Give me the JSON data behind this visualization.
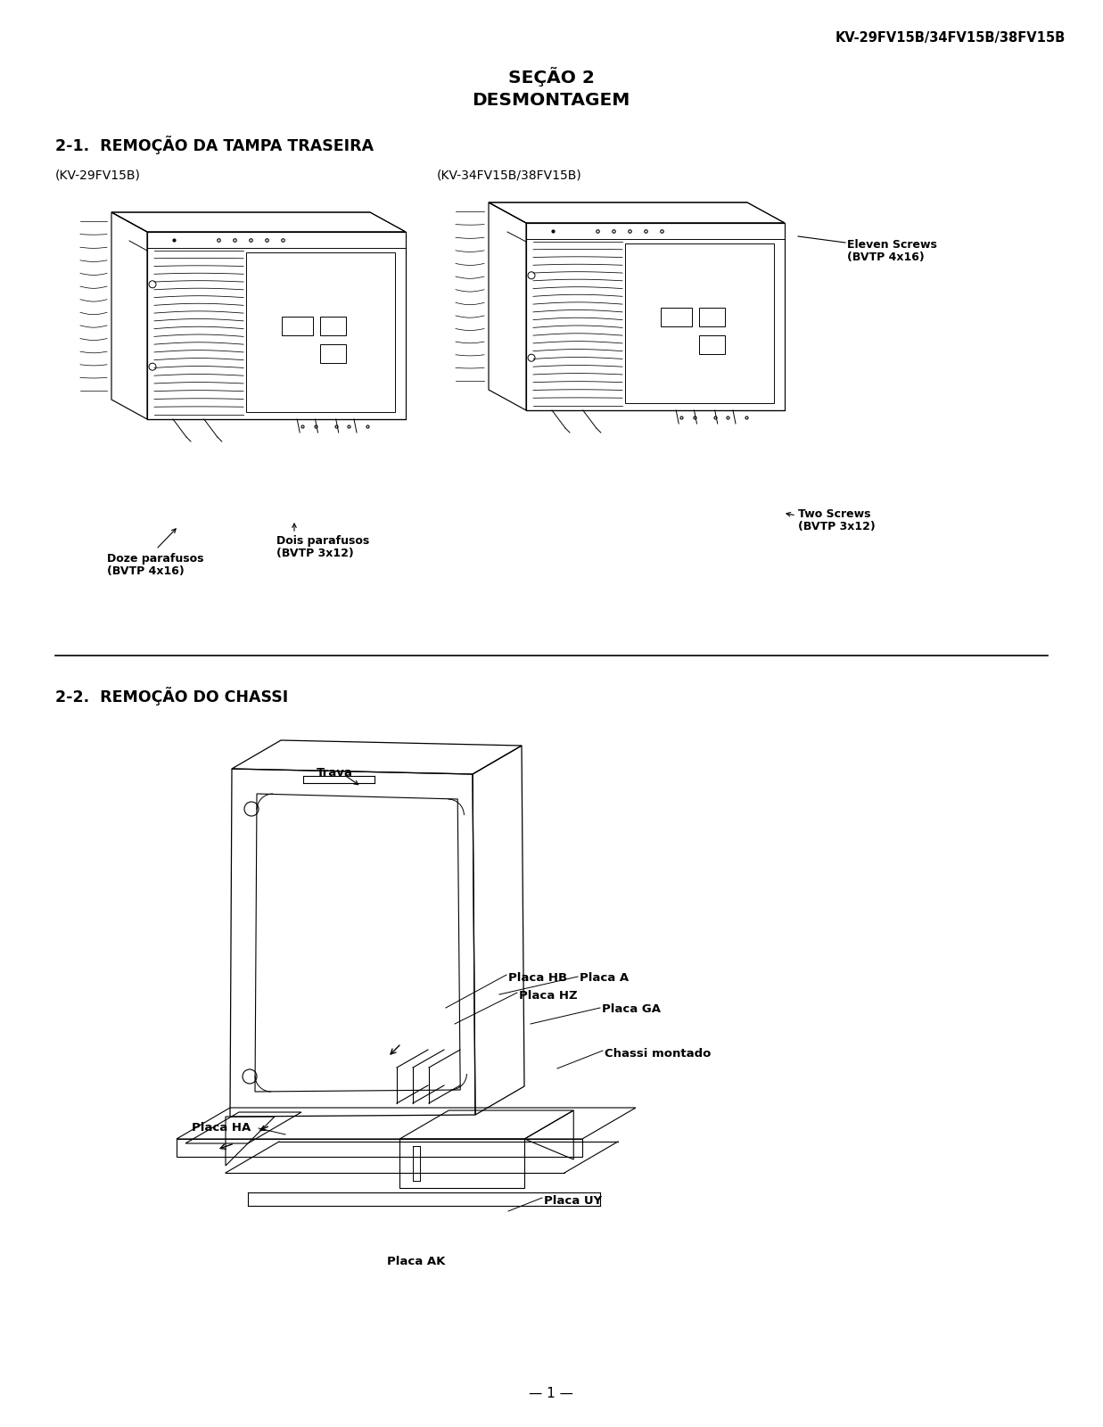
{
  "page_title_line1": "SEÇÃO 2",
  "page_title_line2": "DESMONTAGEM",
  "header_model": "KV-29FV15B/34FV15B/38FV15B",
  "section1_title": "2-1.  REMOÇÃO DA TAMPA TRASEIRA",
  "section1_sub_left": "(KV-29FV15B)",
  "section1_sub_right": "(KV-34FV15B/38FV15B)",
  "label_doze": "Doze parafusos",
  "label_doze2": "(BVTP 4x16)",
  "label_dois": "Dois parafusos",
  "label_dois2": "(BVTP 3x12)",
  "label_eleven": "Eleven Screws",
  "label_eleven2": "(BVTP 4x16)",
  "label_two": "Two Screws",
  "label_two2": "(BVTP 3x12)",
  "section2_title": "2-2.  REMOÇÃO DO CHASSI",
  "label_trava": "Trava",
  "label_placa_hb": "Placa HB",
  "label_placa_hz": "Placa HZ",
  "label_placa_a": "Placa A",
  "label_placa_ga": "Placa GA",
  "label_chassi": "Chassi montado",
  "label_placa_ha": "Placa HA",
  "label_placa_uy": "Placa UY",
  "label_placa_ak": "Placa AK",
  "page_number": "— 1 —",
  "bg_color": "#ffffff",
  "text_color": "#000000",
  "line_color": "#000000"
}
